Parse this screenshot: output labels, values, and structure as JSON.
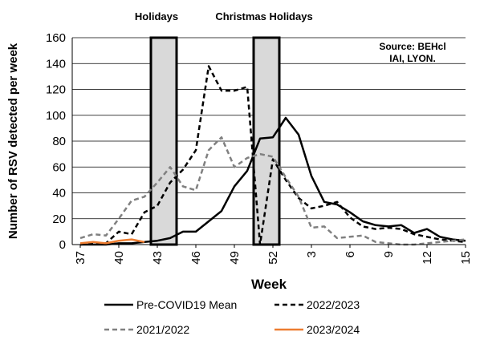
{
  "chart_data": {
    "type": "line",
    "title": "",
    "xlabel": "Week",
    "ylabel": "Number of RSV detected per week",
    "ylim": [
      0,
      160
    ],
    "yticks": [
      0,
      20,
      40,
      60,
      80,
      100,
      120,
      140,
      160
    ],
    "xticks": [
      "37",
      "40",
      "43",
      "46",
      "49",
      "52",
      "3",
      "6",
      "9",
      "12",
      "15"
    ],
    "grid": "horizontal",
    "legend_position": "bottom",
    "x": [
      "37",
      "38",
      "39",
      "40",
      "41",
      "42",
      "43",
      "44",
      "45",
      "46",
      "47",
      "48",
      "49",
      "50",
      "51",
      "52",
      "1",
      "2",
      "3",
      "4",
      "5",
      "6",
      "7",
      "8",
      "9",
      "10",
      "11",
      "12",
      "13",
      "14",
      "15"
    ],
    "annotations": {
      "source_line1": "Source: BEHcl",
      "source_line2": "IAI, LYON.",
      "band1_label": "Holidays",
      "band2_label": "Christmas Holidays"
    },
    "bands": [
      {
        "label": "Holidays",
        "from": "42.5",
        "to": "44.5"
      },
      {
        "label": "Christmas Holidays",
        "from": "50.5",
        "to": "52.5"
      }
    ],
    "colors": {
      "pre_covid": "#000000",
      "s2022": "#000000",
      "s2021": "#808080",
      "s2023": "#ed7d31",
      "band_fill": "#d9d9d9"
    },
    "series": [
      {
        "name": "Pre-COVID19 Mean",
        "style": "solid",
        "color": "#000000",
        "values": [
          0,
          0,
          0,
          1,
          1,
          2,
          3,
          5,
          10,
          10,
          18,
          26,
          45,
          57,
          82,
          83,
          98,
          85,
          53,
          33,
          31,
          25,
          18,
          15,
          14,
          15,
          9,
          12,
          6,
          4,
          3
        ]
      },
      {
        "name": "2022/2023",
        "style": "dashed",
        "color": "#000000",
        "values": [
          0,
          1,
          1,
          10,
          8,
          25,
          30,
          48,
          58,
          73,
          138,
          119,
          119,
          122,
          0,
          66,
          50,
          36,
          28,
          30,
          33,
          21,
          14,
          12,
          13,
          12,
          8,
          6,
          4,
          3,
          2
        ]
      },
      {
        "name": "2021/2022",
        "style": "dashed",
        "color": "#808080",
        "values": [
          5,
          8,
          7,
          20,
          34,
          37,
          48,
          60,
          45,
          42,
          73,
          83,
          60,
          67,
          70,
          68,
          52,
          37,
          13,
          14,
          5,
          6,
          7,
          2,
          1,
          0,
          0,
          1,
          2,
          3,
          4
        ]
      },
      {
        "name": "2023/2024",
        "style": "solid",
        "color": "#ed7d31",
        "values": [
          1,
          2,
          1,
          3,
          4,
          2,
          null,
          null,
          null,
          null,
          null,
          null,
          null,
          null,
          null,
          null,
          null,
          null,
          null,
          null,
          null,
          null,
          null,
          null,
          null,
          null,
          null,
          null,
          null,
          null,
          null
        ]
      }
    ]
  }
}
